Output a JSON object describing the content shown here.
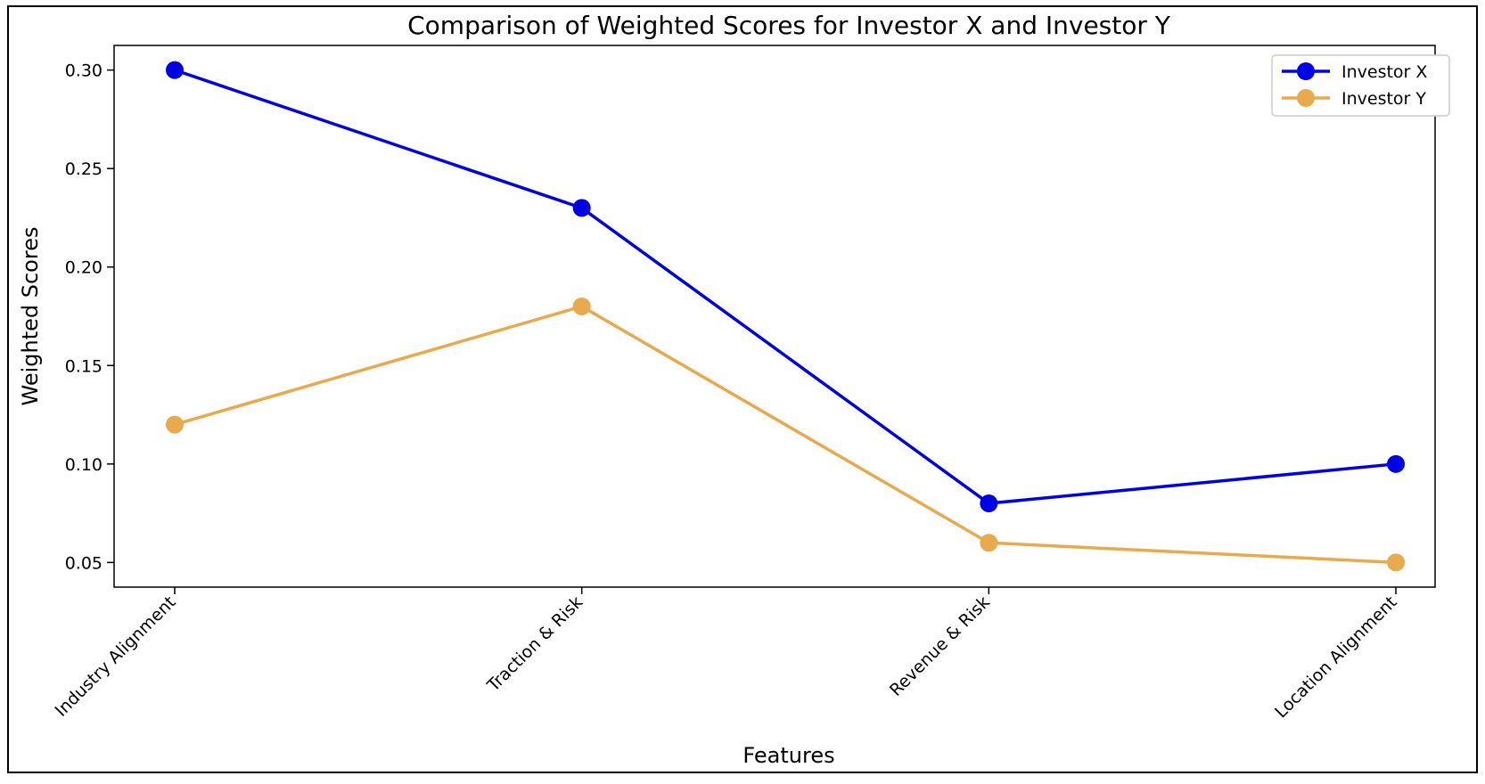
{
  "chart_data": {
    "type": "line",
    "title": "Comparison of Weighted Scores for Investor X and Investor Y",
    "xlabel": "Features",
    "ylabel": "Weighted Scores",
    "categories": [
      "Industry Alignment",
      "Traction & Risk",
      "Revenue & Risk",
      "Location Alignment"
    ],
    "series": [
      {
        "name": "Investor X",
        "color": "#0000e6",
        "values": [
          0.3,
          0.23,
          0.08,
          0.1
        ]
      },
      {
        "name": "Investor Y",
        "color": "#e8aa4d",
        "values": [
          0.12,
          0.18,
          0.06,
          0.05
        ]
      }
    ],
    "ylim": [
      0.0375,
      0.3125
    ],
    "yticks": [
      "0.05",
      "0.10",
      "0.15",
      "0.20",
      "0.25",
      "0.30"
    ],
    "grid": false,
    "legend_position": "top-right"
  }
}
